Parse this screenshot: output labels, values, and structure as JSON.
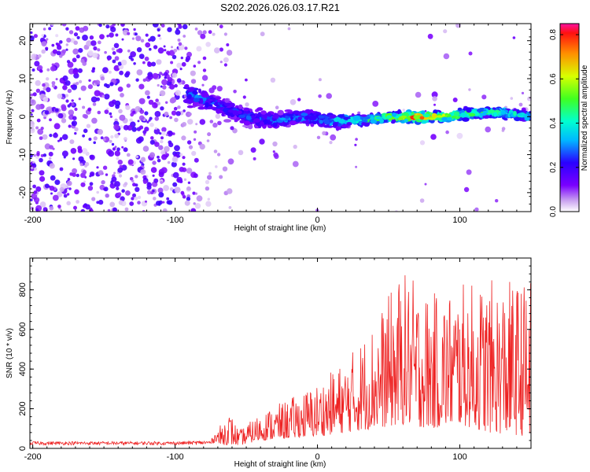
{
  "title": "S202.2026.026.03.17.R21",
  "chart_data": [
    {
      "type": "heatmap",
      "title": "S202.2026.026.03.17.R21",
      "xlabel": "Height of straight line (km)",
      "ylabel": "Frequency (Hz)",
      "xlim": [
        -202,
        150
      ],
      "ylim": [
        -25,
        24.5
      ],
      "x_ticks": [
        "-200",
        "-100",
        "0",
        "100"
      ],
      "x_tick_values": [
        -200,
        -100,
        0,
        100
      ],
      "y_ticks": [
        "-20",
        "-10",
        "0",
        "10",
        "20"
      ],
      "y_tick_values": [
        -20,
        -10,
        0,
        10,
        20
      ],
      "colorbar": {
        "label": "Normalized spectral amplitude",
        "range": [
          0.0,
          0.85
        ],
        "ticks": [
          "0.0",
          "0.2",
          "0.4",
          "0.6",
          "0.8"
        ],
        "tick_values": [
          0.0,
          0.2,
          0.4,
          0.6,
          0.8
        ]
      },
      "description_points": {
        "ridge_x": [
          -90,
          -70,
          -50,
          -30,
          -10,
          10,
          30,
          50,
          70,
          90,
          110,
          130,
          150
        ],
        "ridge_freq": [
          6,
          3,
          0,
          -1,
          0,
          -1,
          -1,
          0,
          0,
          0,
          1,
          1,
          0
        ],
        "ridge_amplitude": [
          0.3,
          0.25,
          0.25,
          0.3,
          0.3,
          0.35,
          0.45,
          0.55,
          0.8,
          0.6,
          0.5,
          0.45,
          0.4
        ]
      }
    },
    {
      "type": "line",
      "xlabel": "Height of straight line (km)",
      "ylabel": "SNR (10 * v/v)",
      "xlim": [
        -202,
        150
      ],
      "ylim": [
        0,
        960
      ],
      "x_ticks": [
        "-200",
        "-100",
        "0",
        "100"
      ],
      "x_tick_values": [
        -200,
        -100,
        0,
        100
      ],
      "y_ticks": [
        "0",
        "200",
        "400",
        "600",
        "800"
      ],
      "y_tick_values": [
        0,
        200,
        400,
        600,
        800
      ],
      "color": "#ee2222",
      "envelope_x": [
        -202,
        -100,
        -75,
        -62,
        -55,
        -40,
        -20,
        0,
        20,
        40,
        60,
        80,
        100,
        120,
        150
      ],
      "envelope_upper": [
        35,
        35,
        40,
        190,
        90,
        180,
        250,
        330,
        450,
        650,
        900,
        780,
        830,
        850,
        850
      ],
      "envelope_lower": [
        10,
        10,
        10,
        20,
        15,
        40,
        50,
        60,
        80,
        100,
        120,
        100,
        120,
        80,
        60
      ]
    }
  ]
}
